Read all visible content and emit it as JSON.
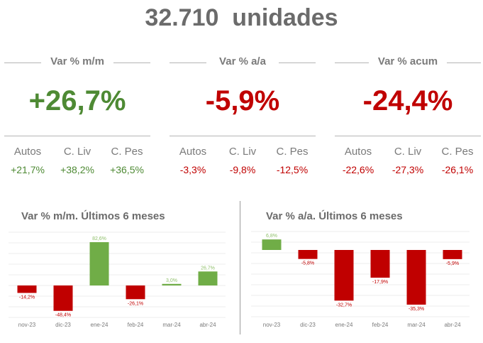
{
  "header": {
    "title": "32.710  unidades"
  },
  "kpis": [
    {
      "label": "Var % m/m",
      "value": "+26,7%",
      "color": "#4e8a34",
      "sub": [
        {
          "name": "Autos",
          "value": "+21,7%"
        },
        {
          "name": "C. Liv",
          "value": "+38,2%"
        },
        {
          "name": "C. Pes",
          "value": "+36,5%"
        }
      ]
    },
    {
      "label": "Var % a/a",
      "value": "-5,9%",
      "color": "#c00000",
      "sub": [
        {
          "name": "Autos",
          "value": "-3,3%"
        },
        {
          "name": "C. Liv",
          "value": "-9,8%"
        },
        {
          "name": "C. Pes",
          "value": "-12,5%"
        }
      ]
    },
    {
      "label": "Var % acum",
      "value": "-24,4%",
      "color": "#c00000",
      "sub": [
        {
          "name": "Autos",
          "value": "-22,6%"
        },
        {
          "name": "C. Liv",
          "value": "-27,3%"
        },
        {
          "name": "C. Pes",
          "value": "-26,1%"
        }
      ]
    }
  ],
  "colors": {
    "positive": "#70ad47",
    "negative": "#c00000",
    "positive_label": "#8fbf6a",
    "negative_label": "#c00000"
  },
  "chart_data": [
    {
      "type": "bar",
      "title": "Var % m/m. Últimos 6 meses",
      "categories": [
        "nov-23",
        "dic-23",
        "ene-24",
        "feb-24",
        "mar-24",
        "abr-24"
      ],
      "values": [
        -14.2,
        -48.4,
        82.6,
        -26.1,
        3.0,
        26.7
      ],
      "labels": [
        "-14,2%",
        "-48,4%",
        "82,6%",
        "-26,1%",
        "3,0%",
        "26,7%"
      ],
      "grid": true
    },
    {
      "type": "bar",
      "title": "Var % a/a. Últimos 6 meses",
      "categories": [
        "nov-23",
        "dic-23",
        "ene-24",
        "feb-24",
        "mar-24",
        "abr-24"
      ],
      "values": [
        6.8,
        -5.8,
        -32.7,
        -17.9,
        -35.3,
        -5.9
      ],
      "labels": [
        "6,8%",
        "-5,8%",
        "-32,7%",
        "-17,9%",
        "-35,3%",
        "-5,9%"
      ],
      "grid": true
    }
  ]
}
